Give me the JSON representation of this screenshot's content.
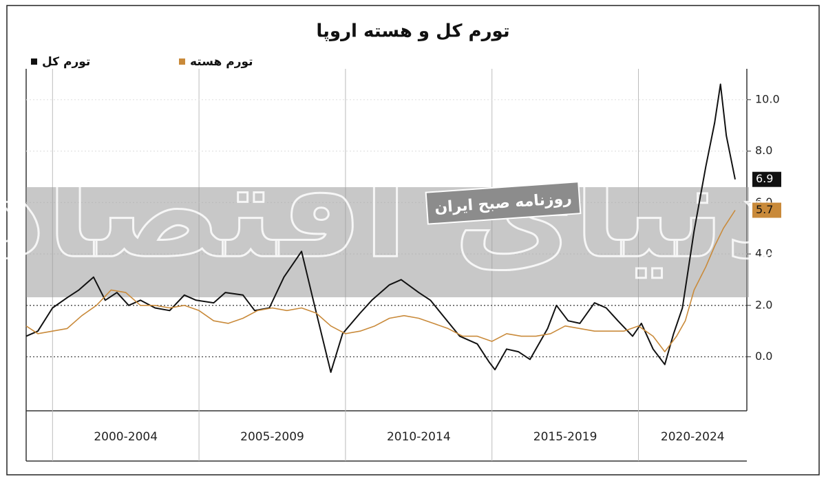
{
  "chart_data": {
    "type": "line",
    "title": "تورم کل و هسته اروپا",
    "watermark": {
      "brand": "دنیای اقتصاد",
      "tagline": "روزنامه صبح ایران"
    },
    "periods": [
      "2000-2004",
      "2005-2009",
      "2010-2014",
      "2015-2019",
      "2020-2024"
    ],
    "xlim": [
      1999.1,
      2023.7
    ],
    "xticks": [
      2000,
      2005,
      2010,
      2015,
      2020
    ],
    "ylim": [
      -2.1,
      11.2
    ],
    "yticks": [
      {
        "value": 0,
        "label": "0.0"
      },
      {
        "value": 2,
        "label": "2.0"
      },
      {
        "value": 4,
        "label": "4.0"
      },
      {
        "value": 6,
        "label": "6.0"
      },
      {
        "value": 8,
        "label": "8.0"
      },
      {
        "value": 10,
        "label": "10.0"
      }
    ],
    "grid": true,
    "series": [
      {
        "name": "تورم کل",
        "color": "#111111",
        "x": [
          1999.1,
          1999.5,
          2000.0,
          2000.5,
          2000.9,
          2001.4,
          2001.8,
          2002.2,
          2002.6,
          2003.0,
          2003.5,
          2004.0,
          2004.5,
          2004.9,
          2005.5,
          2005.9,
          2006.5,
          2006.9,
          2007.4,
          2007.9,
          2008.5,
          2008.9,
          2009.5,
          2009.9,
          2010.5,
          2010.9,
          2011.5,
          2011.9,
          2012.5,
          2012.9,
          2013.4,
          2013.9,
          2014.5,
          2014.9,
          2015.1,
          2015.5,
          2015.9,
          2016.3,
          2016.9,
          2017.2,
          2017.6,
          2018.0,
          2018.5,
          2018.9,
          2019.3,
          2019.8,
          2020.1,
          2020.5,
          2020.9,
          2021.2,
          2021.5,
          2021.9,
          2022.3,
          2022.6,
          2022.8,
          2023.0,
          2023.3
        ],
        "values": [
          0.8,
          1.0,
          1.9,
          2.3,
          2.6,
          3.1,
          2.2,
          2.5,
          2.0,
          2.2,
          1.9,
          1.8,
          2.4,
          2.2,
          2.1,
          2.5,
          2.4,
          1.8,
          1.9,
          3.1,
          4.1,
          2.2,
          -0.6,
          0.9,
          1.7,
          2.2,
          2.8,
          3.0,
          2.5,
          2.2,
          1.5,
          0.8,
          0.5,
          -0.2,
          -0.5,
          0.3,
          0.2,
          -0.1,
          1.1,
          2.0,
          1.4,
          1.3,
          2.1,
          1.9,
          1.4,
          0.8,
          1.3,
          0.3,
          -0.3,
          0.9,
          1.9,
          4.9,
          7.4,
          9.1,
          10.6,
          8.6,
          6.9
        ]
      },
      {
        "name": "تورم هسته",
        "color": "#c98a3a",
        "x": [
          1999.1,
          1999.5,
          2000.0,
          2000.5,
          2001.0,
          2001.5,
          2002.0,
          2002.5,
          2003.0,
          2003.5,
          2004.0,
          2004.5,
          2005.0,
          2005.5,
          2006.0,
          2006.5,
          2007.0,
          2007.5,
          2008.0,
          2008.5,
          2009.0,
          2009.5,
          2010.0,
          2010.5,
          2011.0,
          2011.5,
          2012.0,
          2012.5,
          2013.0,
          2013.5,
          2014.0,
          2014.5,
          2015.0,
          2015.5,
          2016.0,
          2016.5,
          2017.0,
          2017.5,
          2018.0,
          2018.5,
          2019.0,
          2019.5,
          2020.0,
          2020.5,
          2020.9,
          2021.3,
          2021.6,
          2021.9,
          2022.3,
          2022.6,
          2022.9,
          2023.3
        ],
        "values": [
          1.2,
          0.9,
          1.0,
          1.1,
          1.6,
          2.0,
          2.6,
          2.5,
          2.0,
          2.0,
          1.9,
          2.0,
          1.8,
          1.4,
          1.3,
          1.5,
          1.8,
          1.9,
          1.8,
          1.9,
          1.7,
          1.2,
          0.9,
          1.0,
          1.2,
          1.5,
          1.6,
          1.5,
          1.3,
          1.1,
          0.8,
          0.8,
          0.6,
          0.9,
          0.8,
          0.8,
          0.9,
          1.2,
          1.1,
          1.0,
          1.0,
          1.0,
          1.2,
          0.8,
          0.2,
          0.8,
          1.4,
          2.6,
          3.5,
          4.3,
          5.0,
          5.7
        ]
      }
    ]
  }
}
